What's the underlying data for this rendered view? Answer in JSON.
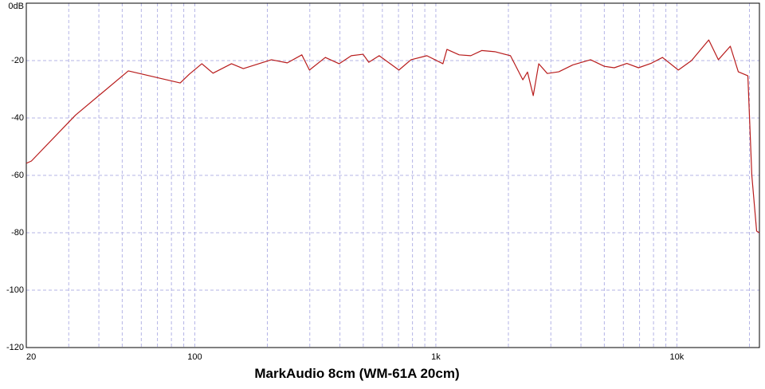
{
  "chart_data": {
    "type": "line",
    "title": "MarkAudio 8cm (WM-61A 20cm)",
    "x_scale": "log",
    "xlim": [
      20,
      22000
    ],
    "xticks": [
      20,
      100,
      {
        "value": 1000,
        "label": "1k"
      },
      {
        "value": 10000,
        "label": "10k"
      }
    ],
    "x_minor_ticks": [
      30,
      40,
      50,
      60,
      70,
      80,
      90,
      200,
      300,
      400,
      500,
      600,
      700,
      800,
      900,
      2000,
      3000,
      4000,
      5000,
      6000,
      7000,
      8000,
      9000,
      20000
    ],
    "ylim": [
      -120,
      0
    ],
    "yticks": [
      {
        "value": 0,
        "label": "0dB"
      },
      -20,
      -40,
      -60,
      -80,
      -100,
      -120
    ],
    "grid": true,
    "x": [
      20,
      21,
      32,
      53,
      87,
      95,
      107,
      119,
      142,
      159,
      208,
      242,
      278,
      299,
      348,
      397,
      446,
      499,
      527,
      582,
      703,
      789,
      918,
      1070,
      1112,
      1250,
      1396,
      1550,
      1758,
      2040,
      2296,
      2400,
      2536,
      2673,
      2900,
      3236,
      3700,
      4385,
      5000,
      5500,
      6200,
      6932,
      7800,
      8714,
      10140,
      11500,
      13560,
      14860,
      16660,
      17980,
      19700,
      20460,
      21420,
      22000
    ],
    "series": [
      {
        "name": "MarkAudio 8cm (WM-61A 20cm)",
        "color": "#b81c1c",
        "values": [
          -55.8,
          -55,
          -39,
          -23.6,
          -27.8,
          -24.7,
          -21.1,
          -24.4,
          -21.1,
          -22.8,
          -19.7,
          -20.8,
          -18,
          -23.3,
          -18.9,
          -21.1,
          -18.3,
          -17.8,
          -20.6,
          -18.3,
          -23.3,
          -19.7,
          -18.3,
          -21.1,
          -16.1,
          -18,
          -18.3,
          -16.5,
          -16.9,
          -18.3,
          -26.7,
          -24,
          -32.2,
          -21.1,
          -24.5,
          -23.9,
          -21.5,
          -19.7,
          -22,
          -22.5,
          -21,
          -22.5,
          -21,
          -18.9,
          -23.3,
          -20,
          -12.8,
          -19.7,
          -15,
          -23.9,
          -25.3,
          -60,
          -79.4,
          -80
        ]
      }
    ]
  }
}
